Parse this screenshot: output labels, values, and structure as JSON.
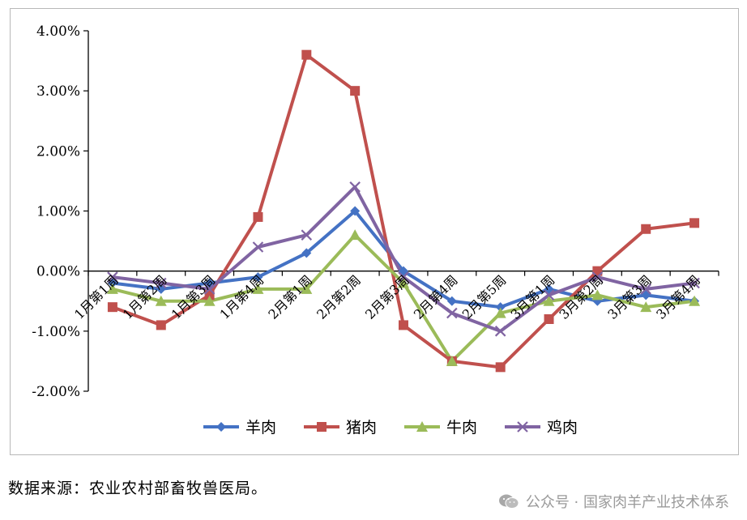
{
  "chart_data": {
    "type": "line",
    "title": "",
    "xlabel": "",
    "ylabel": "",
    "ylim": [
      -0.02,
      0.04
    ],
    "yticks": [
      0.04,
      0.03,
      0.02,
      0.01,
      0.0,
      -0.01,
      -0.02
    ],
    "ytick_labels": [
      "4.00%",
      "3.00%",
      "2.00%",
      "1.00%",
      "0.00%",
      "-1.00%",
      "-2.00%"
    ],
    "grid": false,
    "legend_position": "bottom",
    "categories": [
      "1月第1周",
      "1月第2周",
      "1月第3周",
      "1月第4周",
      "2月第1周",
      "2月第2周",
      "2月第3周",
      "2月第4周",
      "2月第5周",
      "3月第1周",
      "3月第2周",
      "3月第3周",
      "3月第4周"
    ],
    "series": [
      {
        "name": "羊肉",
        "color": "#4472C4",
        "marker": "diamond",
        "values": [
          -0.002,
          -0.003,
          -0.002,
          -0.001,
          0.003,
          0.01,
          0.0,
          -0.005,
          -0.006,
          -0.003,
          -0.005,
          -0.004,
          -0.005
        ]
      },
      {
        "name": "猪肉",
        "color": "#C0504D",
        "marker": "square",
        "values": [
          -0.006,
          -0.009,
          -0.004,
          0.009,
          0.036,
          0.03,
          -0.009,
          -0.015,
          -0.016,
          -0.008,
          0.0,
          0.007,
          0.008
        ]
      },
      {
        "name": "牛肉",
        "color": "#9BBB59",
        "marker": "triangle",
        "values": [
          -0.003,
          -0.005,
          -0.005,
          -0.003,
          -0.003,
          0.006,
          -0.002,
          -0.015,
          -0.007,
          -0.005,
          -0.004,
          -0.006,
          -0.005
        ]
      },
      {
        "name": "鸡肉",
        "color": "#8064A2",
        "marker": "x",
        "values": [
          -0.001,
          -0.002,
          -0.003,
          0.004,
          0.006,
          0.014,
          -0.001,
          -0.007,
          -0.01,
          -0.004,
          -0.001,
          -0.003,
          -0.002
        ]
      }
    ]
  },
  "source_note": "数据来源：农业农村部畜牧兽医局。",
  "watermark": {
    "icon": "wechat-icon",
    "text": "公众号 · 国家肉羊产业技术体系"
  }
}
